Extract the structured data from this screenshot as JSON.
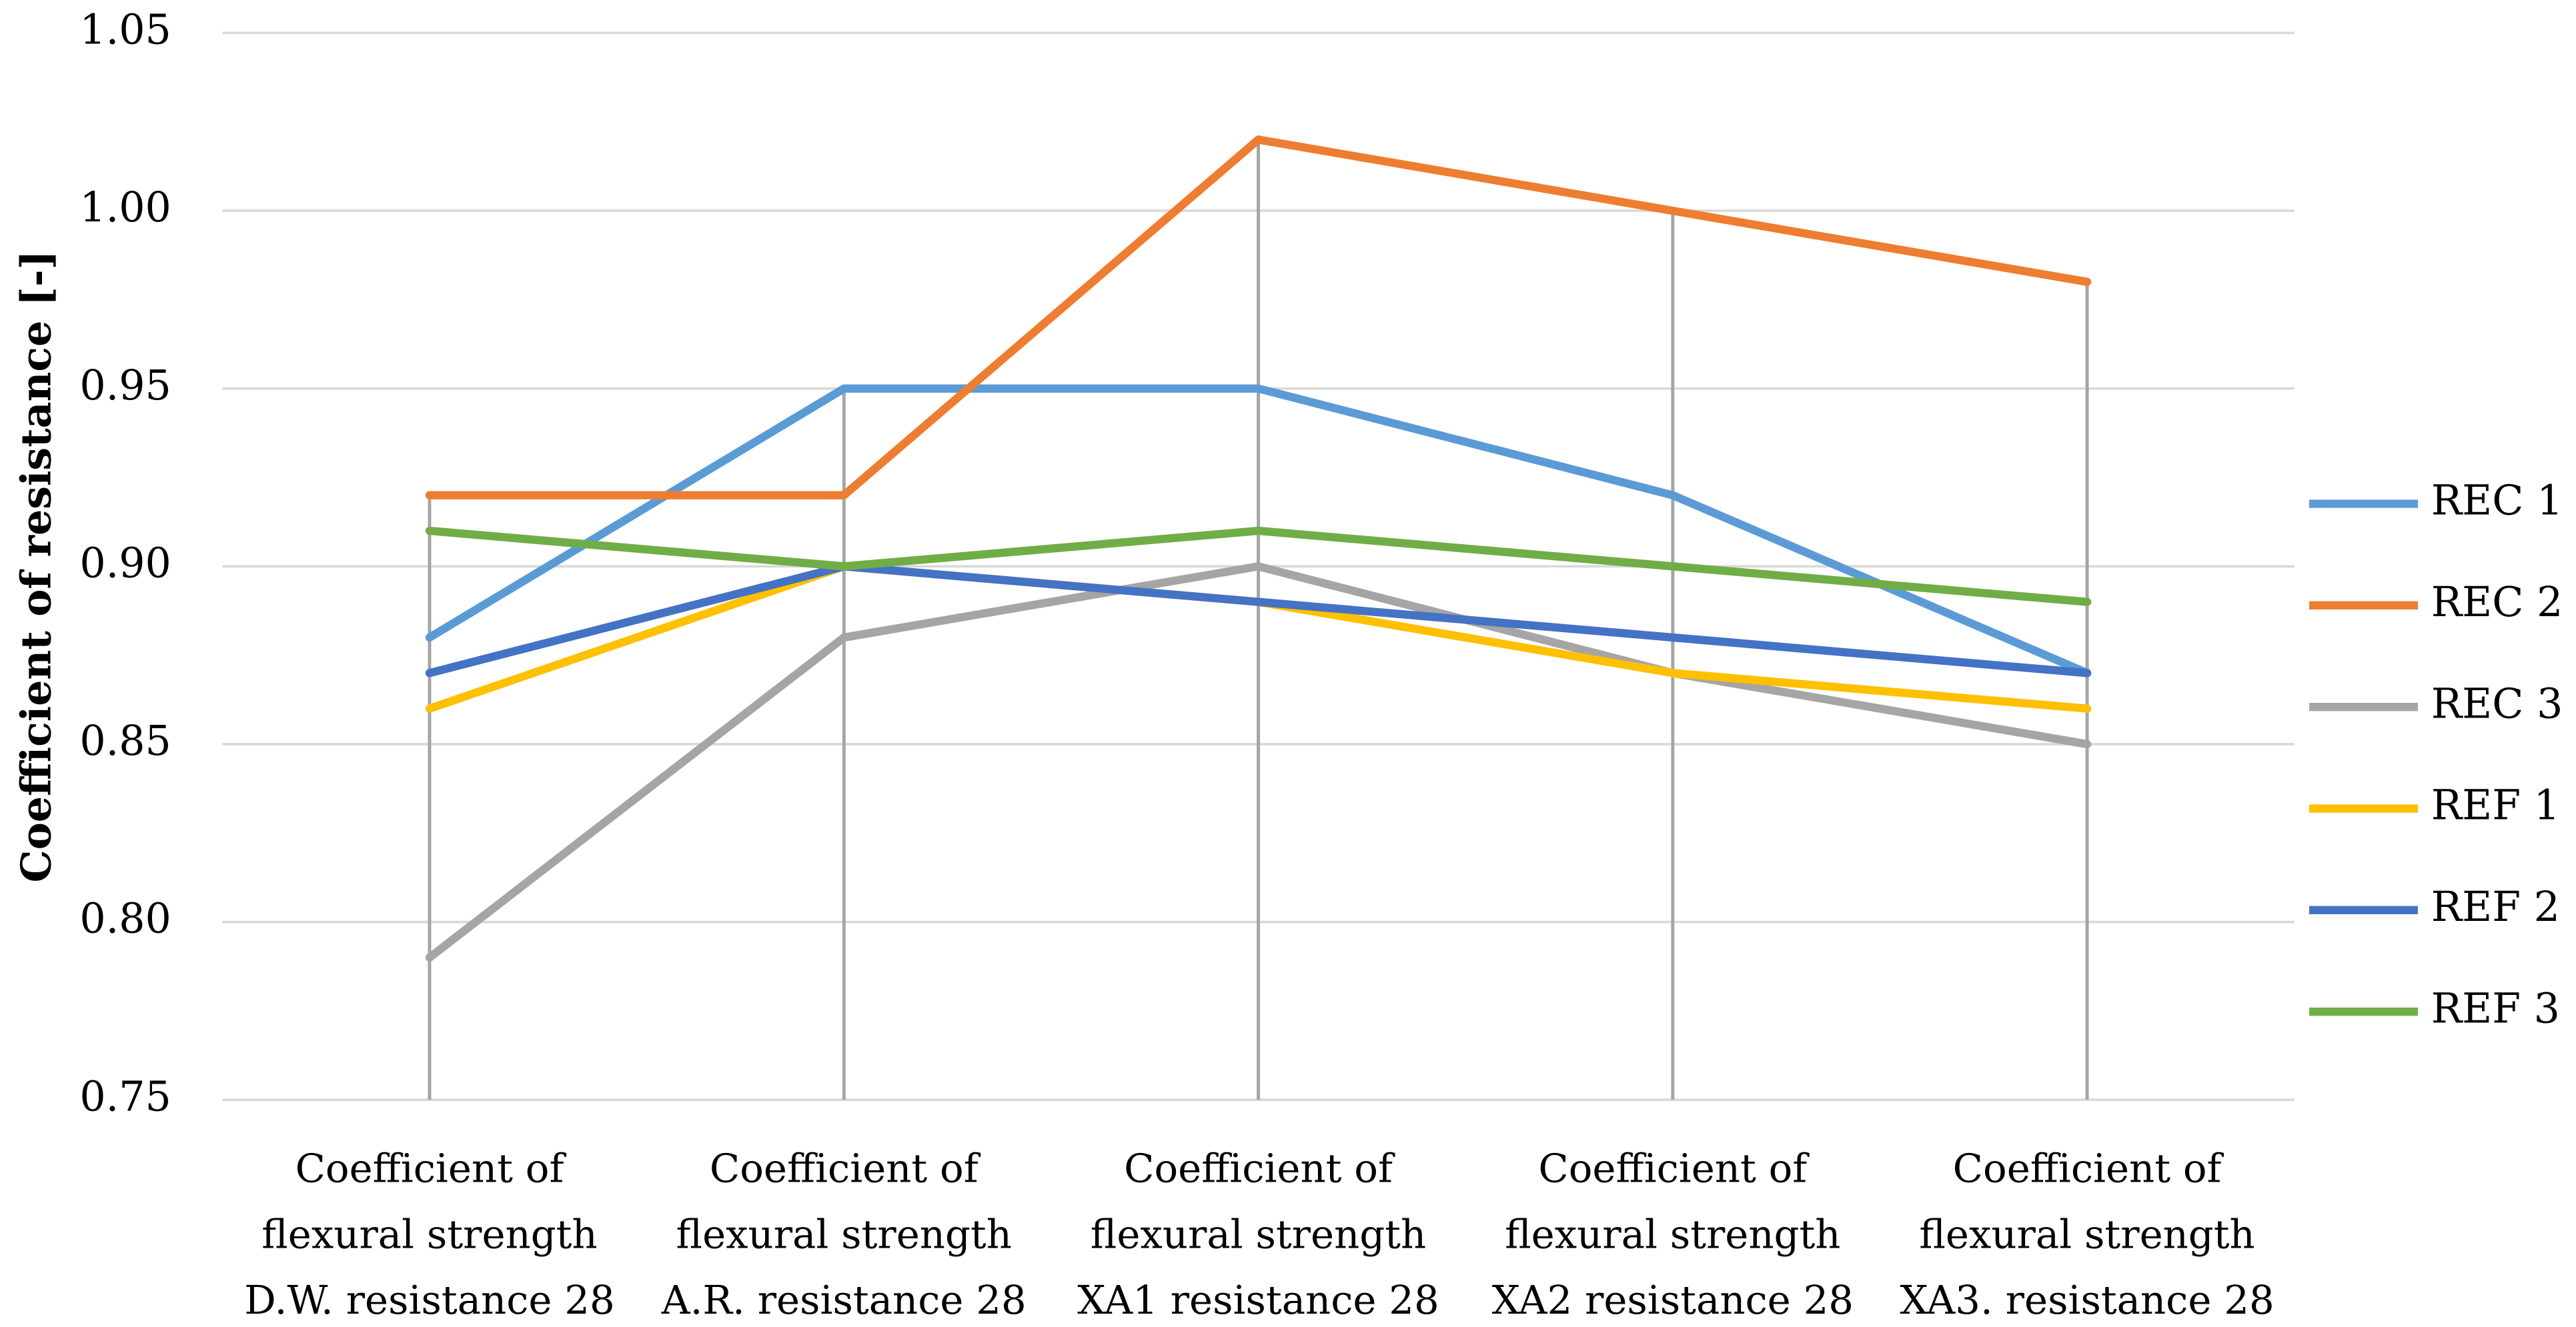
{
  "chart_data": {
    "type": "line",
    "y_label": "Coefficient of resistance [-]",
    "categories": [
      "Coefficient of flexural strength D.W. resistance 28",
      "Coefficient of flexural strength A.R. resistance 28",
      "Coefficient of flexural strength XA1 resistance 28",
      "Coefficient of flexural strength XA2 resistance 28",
      "Coefficient of flexural strength XA3. resistance 28"
    ],
    "series": [
      {
        "name": "REC 1",
        "color": "#5b9bd5",
        "values": [
          0.88,
          0.95,
          0.95,
          0.92,
          0.87
        ]
      },
      {
        "name": "REC 2",
        "color": "#ed7d31",
        "values": [
          0.92,
          0.92,
          1.02,
          1.0,
          0.98
        ]
      },
      {
        "name": "REC 3",
        "color": "#a5a5a5",
        "values": [
          0.79,
          0.88,
          0.9,
          0.87,
          0.85
        ]
      },
      {
        "name": "REF 1",
        "color": "#ffc000",
        "values": [
          0.86,
          0.9,
          0.89,
          0.87,
          0.86
        ]
      },
      {
        "name": "REF 2",
        "color": "#4472c4",
        "values": [
          0.87,
          0.9,
          0.89,
          0.88,
          0.87
        ]
      },
      {
        "name": "REF 3",
        "color": "#70ad47",
        "values": [
          0.91,
          0.9,
          0.91,
          0.9,
          0.89
        ]
      }
    ],
    "ylim": [
      0.75,
      1.05
    ],
    "yticks": [
      0.75,
      {
        "value": 0.8,
        "label": "0.80"
      },
      0.85,
      {
        "value": 0.9,
        "label": "0.90"
      },
      0.95,
      {
        "value": 1,
        "label": "1.00"
      },
      1.05
    ],
    "grid": true,
    "drop_lines": true,
    "legend": "right"
  }
}
